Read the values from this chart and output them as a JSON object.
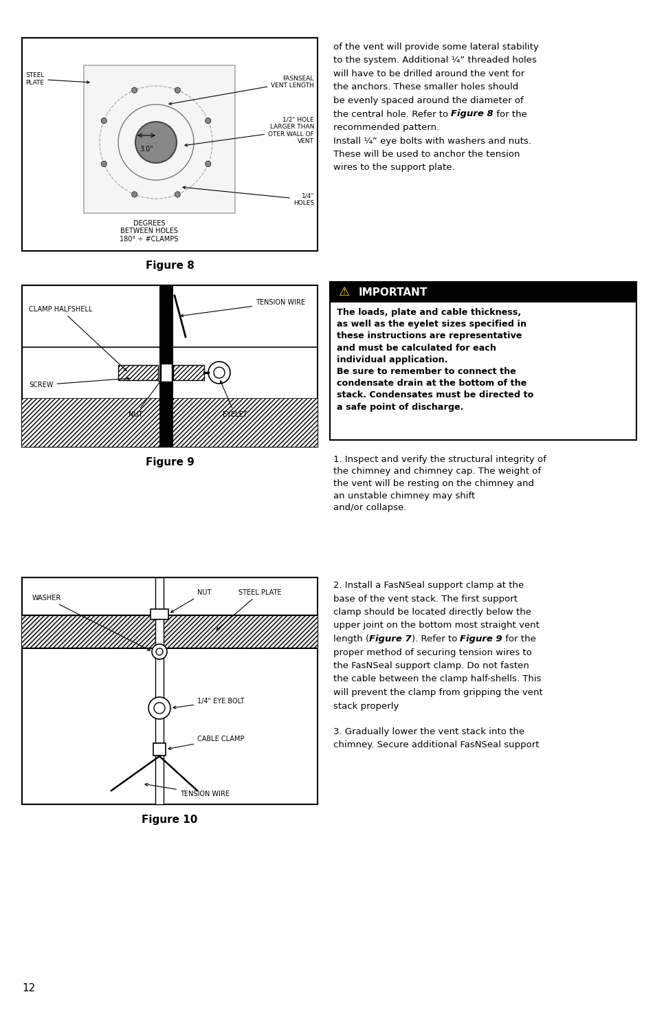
{
  "bg_color": "#ffffff",
  "fig8_caption": "Figure 8",
  "fig9_caption": "Figure 9",
  "fig10_caption": "Figure 10",
  "important_title": "IMPORTANT",
  "important_icon": "⚠",
  "important_body": "The loads, plate and cable thickness,\nas well as the eyelet sizes specified in\nthese instructions are representative\nand must be calculated for each\nindividual application.\nBe sure to remember to connect the\ncondensate drain at the bottom of the\nstack. Condensates must be directed to\na safe point of discharge.",
  "right_top_lines": [
    "of the vent will provide some lateral stability",
    "to the system. Additional ¼” threaded holes",
    "will have to be drilled around the vent for",
    "the anchors. These smaller holes should",
    "be evenly spaced around the diameter of",
    "the central hole. Refer to ||Figure 8|| for the",
    "recommended pattern.",
    "Install ¼” eye bolts with washers and nuts.",
    "These will be used to anchor the tension",
    "wires to the support plate."
  ],
  "p1_text": "1. Inspect and verify the structural integrity of\nthe chimney and chimney cap. The weight of\nthe vent will be resting on the chimney and\nan unstable chimney may shift\nand/or collapse.",
  "p2_text": "2. Install a FasNSeal support clamp at the\nbase of the vent stack. The first support\nclamp should be located directly below the\nupper joint on the bottom most straight vent\nlength (||Figure 7||). Refer to ||Figure 9|| for the\nproper method of securing tension wires to\nthe FasNSeal support clamp. Do not fasten\nthe cable between the clamp half-shells. This\nwill prevent the clamp from gripping the vent\nstack properly",
  "p3_text": "3. Gradually lower the vent stack into the\nchimney. Secure additional FasNSeal support",
  "page_number": "12"
}
